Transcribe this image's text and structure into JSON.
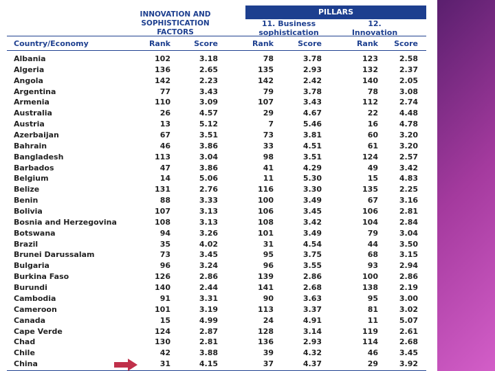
{
  "header": {
    "group_title": "INNOVATION AND SOPHISTICATION FACTORS",
    "pillars": "PILLARS",
    "pillar_11": "11. Business sophistication",
    "pillar_12": "12. Innovation"
  },
  "table": {
    "columns": [
      "Country/Economy",
      "Rank",
      "Score",
      "Rank",
      "Score",
      "Rank",
      "Score"
    ],
    "rows": [
      [
        "Albania",
        "102",
        "3.18",
        "78",
        "3.78",
        "123",
        "2.58"
      ],
      [
        "Algeria",
        "136",
        "2.65",
        "135",
        "2.93",
        "132",
        "2.37"
      ],
      [
        "Angola",
        "142",
        "2.23",
        "142",
        "2.42",
        "140",
        "2.05"
      ],
      [
        "Argentina",
        "77",
        "3.43",
        "79",
        "3.78",
        "78",
        "3.08"
      ],
      [
        "Armenia",
        "110",
        "3.09",
        "107",
        "3.43",
        "112",
        "2.74"
      ],
      [
        "Australia",
        "26",
        "4.57",
        "29",
        "4.67",
        "22",
        "4.48"
      ],
      [
        "Austria",
        "13",
        "5.12",
        "7",
        "5.46",
        "16",
        "4.78"
      ],
      [
        "Azerbaijan",
        "67",
        "3.51",
        "73",
        "3.81",
        "60",
        "3.20"
      ],
      [
        "Bahrain",
        "46",
        "3.86",
        "33",
        "4.51",
        "61",
        "3.20"
      ],
      [
        "Bangladesh",
        "113",
        "3.04",
        "98",
        "3.51",
        "124",
        "2.57"
      ],
      [
        "Barbados",
        "47",
        "3.86",
        "41",
        "4.29",
        "49",
        "3.42"
      ],
      [
        "Belgium",
        "14",
        "5.06",
        "11",
        "5.30",
        "15",
        "4.83"
      ],
      [
        "Belize",
        "131",
        "2.76",
        "116",
        "3.30",
        "135",
        "2.25"
      ],
      [
        "Benin",
        "88",
        "3.33",
        "100",
        "3.49",
        "67",
        "3.16"
      ],
      [
        "Bolivia",
        "107",
        "3.13",
        "106",
        "3.45",
        "106",
        "2.81"
      ],
      [
        "Bosnia and Herzegovina",
        "108",
        "3.13",
        "108",
        "3.42",
        "104",
        "2.84"
      ],
      [
        "Botswana",
        "94",
        "3.26",
        "101",
        "3.49",
        "79",
        "3.04"
      ],
      [
        "Brazil",
        "35",
        "4.02",
        "31",
        "4.54",
        "44",
        "3.50"
      ],
      [
        "Brunei Darussalam",
        "73",
        "3.45",
        "95",
        "3.75",
        "68",
        "3.15"
      ],
      [
        "Bulgaria",
        "96",
        "3.24",
        "96",
        "3.55",
        "93",
        "2.94"
      ],
      [
        "Burkina Faso",
        "126",
        "2.86",
        "139",
        "2.86",
        "100",
        "2.86"
      ],
      [
        "Burundi",
        "140",
        "2.44",
        "141",
        "2.68",
        "138",
        "2.19"
      ],
      [
        "Cambodia",
        "91",
        "3.31",
        "90",
        "3.63",
        "95",
        "3.00"
      ],
      [
        "Cameroon",
        "101",
        "3.19",
        "113",
        "3.37",
        "81",
        "3.02"
      ],
      [
        "Canada",
        "15",
        "4.99",
        "24",
        "4.91",
        "11",
        "5.07"
      ],
      [
        "Cape Verde",
        "124",
        "2.87",
        "128",
        "3.14",
        "119",
        "2.61"
      ],
      [
        "Chad",
        "130",
        "2.81",
        "136",
        "2.93",
        "114",
        "2.68"
      ],
      [
        "Chile",
        "42",
        "3.88",
        "39",
        "4.32",
        "46",
        "3.45"
      ],
      [
        "China",
        "31",
        "4.15",
        "37",
        "4.37",
        "29",
        "3.92"
      ]
    ]
  }
}
